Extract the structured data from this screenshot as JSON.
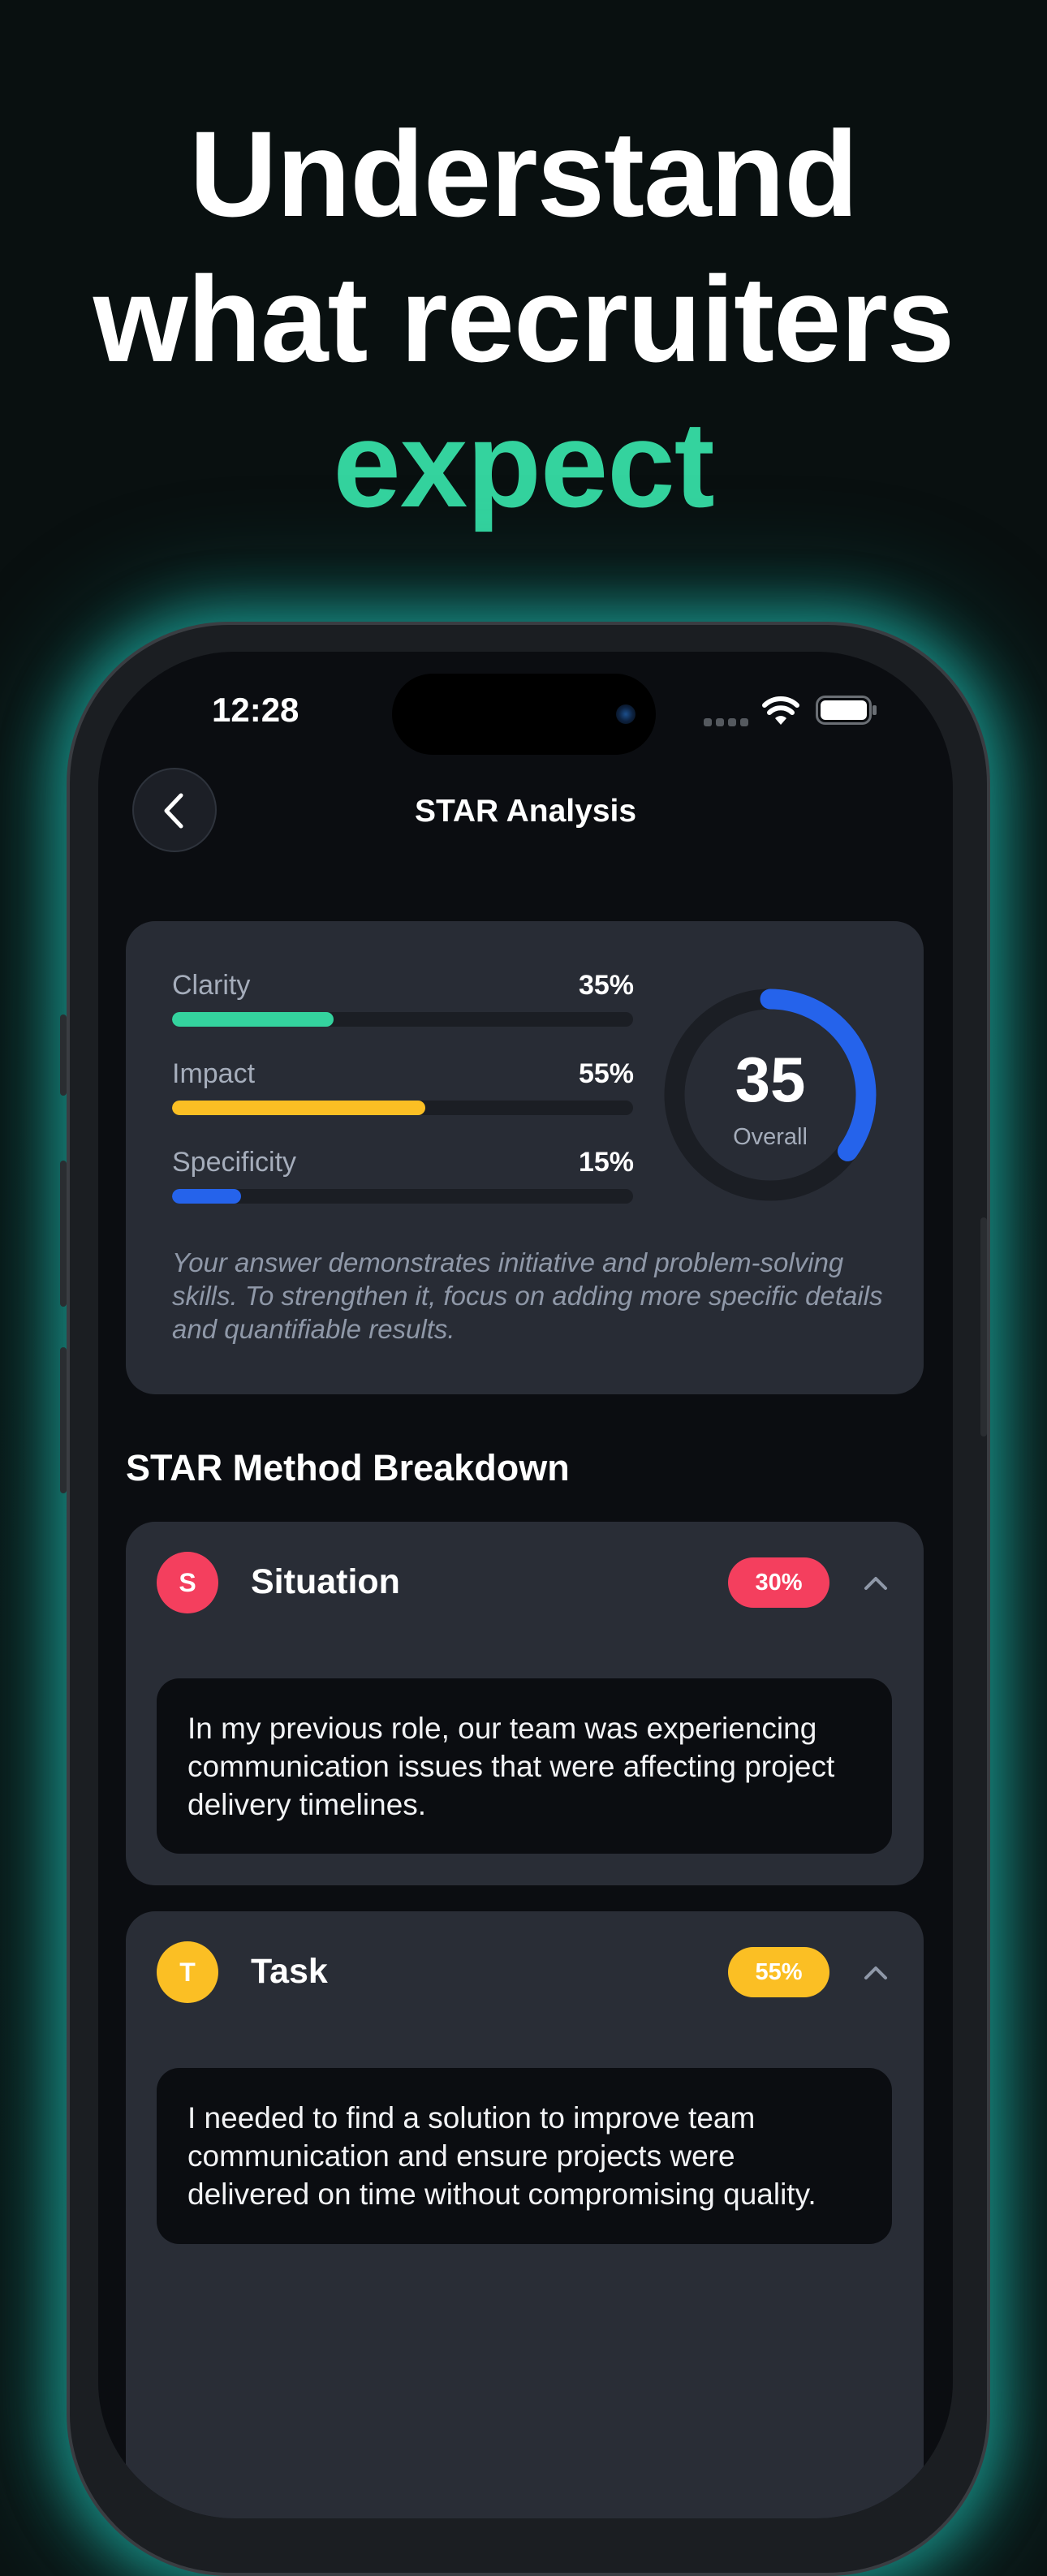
{
  "headline": {
    "line1": "Understand",
    "line2": "what recruiters",
    "line3": "expect",
    "accent_color": "#34d39e"
  },
  "status_bar": {
    "time": "12:28",
    "icons": [
      "signal-icon",
      "wifi-icon",
      "battery-icon"
    ]
  },
  "nav": {
    "title": "STAR Analysis",
    "back_icon": "chevron-left-icon"
  },
  "summary": {
    "metrics": [
      {
        "label": "Clarity",
        "value": "35%",
        "percent": 35,
        "color": "#34d39e"
      },
      {
        "label": "Impact",
        "value": "55%",
        "percent": 55,
        "color": "#fbbf24"
      },
      {
        "label": "Specificity",
        "value": "15%",
        "percent": 15,
        "color": "#2563eb"
      }
    ],
    "overall": {
      "score": "35",
      "label": "Overall",
      "percent": 35,
      "color": "#2563eb"
    },
    "feedback": "Your answer demonstrates initiative and problem-solving skills. To strengthen it, focus on adding more specific details and quantifiable results."
  },
  "breakdown": {
    "title": "STAR Method Breakdown",
    "items": [
      {
        "letter": "S",
        "name": "Situation",
        "score": "30%",
        "color": "#f43f5e",
        "expanded": true,
        "text": "In my previous role, our team was experiencing communication issues that were affecting project delivery timelines."
      },
      {
        "letter": "T",
        "name": "Task",
        "score": "55%",
        "color": "#fbbf24",
        "expanded": true,
        "text": "I needed to find a solution to improve team communication and ensure projects were delivered on time without compromising quality."
      }
    ]
  }
}
